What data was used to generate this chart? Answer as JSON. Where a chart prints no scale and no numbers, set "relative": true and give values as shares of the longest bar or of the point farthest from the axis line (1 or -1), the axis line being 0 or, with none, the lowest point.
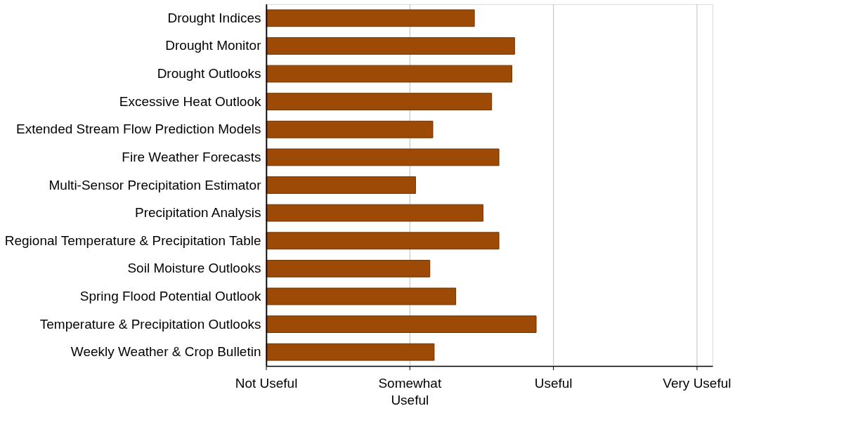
{
  "chart_data": {
    "type": "bar",
    "orientation": "horizontal",
    "relative": true,
    "categories": [
      "Drought Indices",
      "Drought Monitor",
      "Drought Outlooks",
      "Excessive Heat Outlook",
      "Extended Stream Flow Prediction Models",
      "Fire Weather Forecasts",
      "Multi-Sensor Precipitation Estimator",
      "Precipitation Analysis",
      "Regional Temperature & Precipitation Table",
      "Soil Moisture Outlooks",
      "Spring Flood Potential Outlook",
      "Temperature & Precipitation Outlooks",
      "Weekly Weather & Crop Bulletin"
    ],
    "values": [
      0.771,
      0.92,
      0.91,
      0.835,
      0.617,
      0.862,
      0.553,
      0.803,
      0.862,
      0.606,
      0.702,
      1,
      0.622
    ],
    "color": "#9c4a06",
    "ref_lines": [
      {
        "axis": "x",
        "value": 0,
        "label": "Not Useful",
        "color": "#000000"
      },
      {
        "axis": "x",
        "value": 0.532,
        "label": "Somewhat Useful",
        "color": "#bfbfbf"
      },
      {
        "axis": "x",
        "value": 1.064,
        "label": "Useful",
        "color": "#bfbfbf"
      },
      {
        "axis": "x",
        "value": 1.596,
        "label": "Very Useful",
        "color": "#bfbfbf"
      }
    ]
  }
}
